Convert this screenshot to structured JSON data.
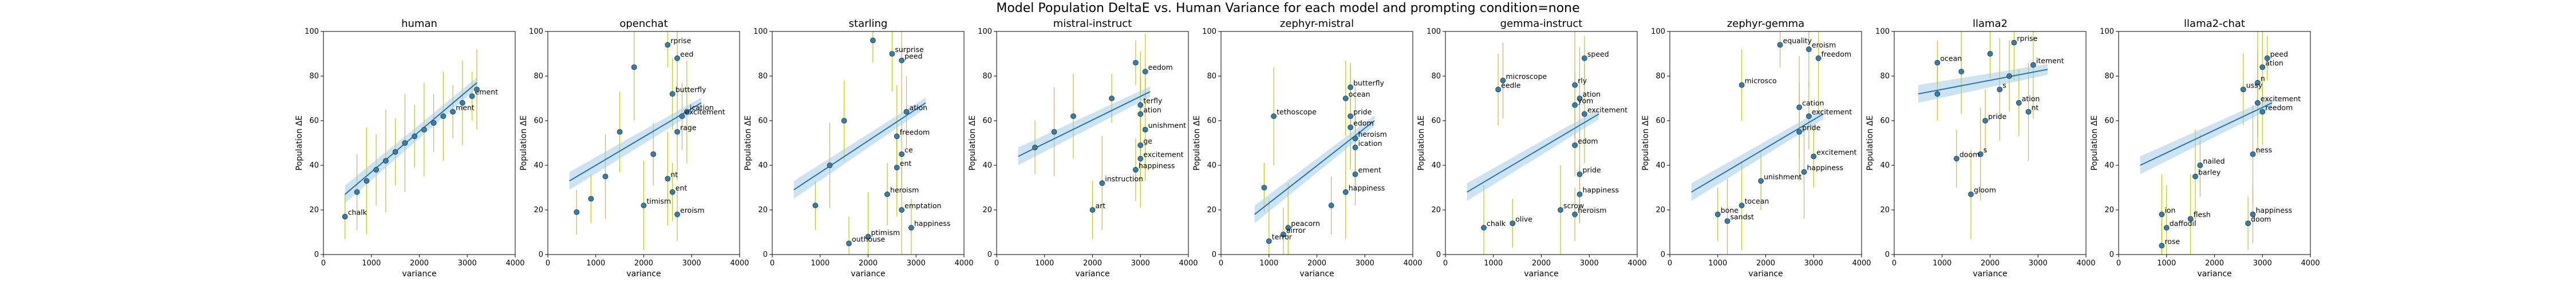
{
  "suptitle": "Model Population DeltaE vs. Human Variance for each model and prompting condition=none",
  "colors": {
    "point": "#3a7ca5",
    "errorbar": "#b5b800",
    "fit": "#1f77b4",
    "band": "#9ec7e6"
  },
  "chart_data": [
    {
      "type": "scatter",
      "title": "human",
      "xlabel": "variance",
      "ylabel": "Population ΔE",
      "xlim": [
        0,
        4000
      ],
      "ylim": [
        0,
        100
      ],
      "xticks": [
        0,
        1000,
        2000,
        3000,
        4000
      ],
      "yticks": [
        0,
        20,
        40,
        60,
        80,
        100
      ],
      "fit": [
        [
          450,
          27
        ],
        [
          3200,
          77
        ]
      ],
      "points": [
        {
          "x": 450,
          "y": 17,
          "label": "chalk"
        },
        {
          "x": 700,
          "y": 28,
          "label": ""
        },
        {
          "x": 900,
          "y": 33,
          "label": ""
        },
        {
          "x": 1100,
          "y": 38,
          "label": ""
        },
        {
          "x": 1300,
          "y": 42,
          "label": ""
        },
        {
          "x": 1500,
          "y": 46,
          "label": ""
        },
        {
          "x": 1700,
          "y": 50,
          "label": ""
        },
        {
          "x": 1900,
          "y": 53,
          "label": ""
        },
        {
          "x": 2100,
          "y": 56,
          "label": ""
        },
        {
          "x": 2300,
          "y": 59,
          "label": ""
        },
        {
          "x": 2500,
          "y": 62,
          "label": ""
        },
        {
          "x": 2700,
          "y": 64,
          "label": "ment"
        },
        {
          "x": 2900,
          "y": 68,
          "label": ""
        },
        {
          "x": 3100,
          "y": 71,
          "label": "ement"
        },
        {
          "x": 3200,
          "y": 74,
          "label": ""
        }
      ]
    },
    {
      "type": "scatter",
      "title": "openchat",
      "xlabel": "variance",
      "ylabel": "Population ΔE",
      "xlim": [
        0,
        4000
      ],
      "ylim": [
        0,
        100
      ],
      "xticks": [
        0,
        1000,
        2000,
        3000,
        4000
      ],
      "yticks": [
        0,
        20,
        40,
        60,
        80,
        100
      ],
      "fit": [
        [
          450,
          33
        ],
        [
          3200,
          68
        ]
      ],
      "points": [
        {
          "x": 2500,
          "y": 94,
          "label": "rprise"
        },
        {
          "x": 2700,
          "y": 88,
          "label": "eed"
        },
        {
          "x": 1800,
          "y": 84,
          "label": ""
        },
        {
          "x": 2600,
          "y": 72,
          "label": "butterfly"
        },
        {
          "x": 2900,
          "y": 64,
          "label": "ication"
        },
        {
          "x": 2800,
          "y": 62,
          "label": "excitement"
        },
        {
          "x": 2700,
          "y": 55,
          "label": "rage"
        },
        {
          "x": 2200,
          "y": 45,
          "label": ""
        },
        {
          "x": 2500,
          "y": 34,
          "label": "nt"
        },
        {
          "x": 2600,
          "y": 28,
          "label": "ent"
        },
        {
          "x": 2000,
          "y": 22,
          "label": "timism"
        },
        {
          "x": 2700,
          "y": 18,
          "label": "eroism"
        },
        {
          "x": 1200,
          "y": 35,
          "label": ""
        },
        {
          "x": 900,
          "y": 25,
          "label": ""
        },
        {
          "x": 1500,
          "y": 55,
          "label": ""
        },
        {
          "x": 600,
          "y": 19,
          "label": ""
        }
      ]
    },
    {
      "type": "scatter",
      "title": "starling",
      "xlabel": "variance",
      "ylabel": "Population ΔE",
      "xlim": [
        0,
        4000
      ],
      "ylim": [
        0,
        100
      ],
      "xticks": [
        0,
        1000,
        2000,
        3000,
        4000
      ],
      "yticks": [
        0,
        20,
        40,
        60,
        80,
        100
      ],
      "fit": [
        [
          450,
          29
        ],
        [
          3200,
          68
        ]
      ],
      "points": [
        {
          "x": 2100,
          "y": 96,
          "label": ""
        },
        {
          "x": 2500,
          "y": 90,
          "label": "surprise"
        },
        {
          "x": 2700,
          "y": 87,
          "label": "peed"
        },
        {
          "x": 2800,
          "y": 64,
          "label": "ation"
        },
        {
          "x": 2600,
          "y": 53,
          "label": "freedom"
        },
        {
          "x": 2700,
          "y": 45,
          "label": "ce"
        },
        {
          "x": 2600,
          "y": 39,
          "label": "ent"
        },
        {
          "x": 2400,
          "y": 27,
          "label": "heroism"
        },
        {
          "x": 2700,
          "y": 20,
          "label": "emptation"
        },
        {
          "x": 2900,
          "y": 12,
          "label": "happiness"
        },
        {
          "x": 2000,
          "y": 8,
          "label": "ptimism"
        },
        {
          "x": 1600,
          "y": 5,
          "label": "outhouse"
        },
        {
          "x": 1200,
          "y": 40,
          "label": ""
        },
        {
          "x": 900,
          "y": 22,
          "label": ""
        },
        {
          "x": 1500,
          "y": 60,
          "label": ""
        }
      ]
    },
    {
      "type": "scatter",
      "title": "mistral-instruct",
      "xlabel": "variance",
      "ylabel": "Population ΔE",
      "xlim": [
        0,
        4000
      ],
      "ylim": [
        0,
        100
      ],
      "xticks": [
        0,
        1000,
        2000,
        3000,
        4000
      ],
      "yticks": [
        0,
        20,
        40,
        60,
        80,
        100
      ],
      "fit": [
        [
          450,
          44
        ],
        [
          3200,
          73
        ]
      ],
      "points": [
        {
          "x": 2900,
          "y": 86,
          "label": ""
        },
        {
          "x": 3100,
          "y": 82,
          "label": "eedom"
        },
        {
          "x": 3000,
          "y": 67,
          "label": "terfly"
        },
        {
          "x": 3000,
          "y": 63,
          "label": "ation"
        },
        {
          "x": 3100,
          "y": 56,
          "label": "unishment"
        },
        {
          "x": 3000,
          "y": 49,
          "label": "ge"
        },
        {
          "x": 3000,
          "y": 43,
          "label": "excitement"
        },
        {
          "x": 2900,
          "y": 38,
          "label": "happiness"
        },
        {
          "x": 2200,
          "y": 32,
          "label": "instruction"
        },
        {
          "x": 2000,
          "y": 20,
          "label": "art"
        },
        {
          "x": 1200,
          "y": 55,
          "label": ""
        },
        {
          "x": 800,
          "y": 48,
          "label": ""
        },
        {
          "x": 1600,
          "y": 62,
          "label": ""
        },
        {
          "x": 2400,
          "y": 70,
          "label": ""
        }
      ]
    },
    {
      "type": "scatter",
      "title": "zephyr-mistral",
      "xlabel": "variance",
      "ylabel": "Population ΔE",
      "xlim": [
        0,
        4000
      ],
      "ylim": [
        0,
        100
      ],
      "xticks": [
        0,
        1000,
        2000,
        3000,
        4000
      ],
      "yticks": [
        0,
        20,
        40,
        60,
        80,
        100
      ],
      "fit": [
        [
          700,
          18
        ],
        [
          3200,
          60
        ]
      ],
      "points": [
        {
          "x": 2700,
          "y": 75,
          "label": "butterfly"
        },
        {
          "x": 2600,
          "y": 70,
          "label": "ocean"
        },
        {
          "x": 2700,
          "y": 62,
          "label": "pride"
        },
        {
          "x": 2700,
          "y": 57,
          "label": "edom"
        },
        {
          "x": 2800,
          "y": 52,
          "label": "heroism"
        },
        {
          "x": 2800,
          "y": 48,
          "label": "ication"
        },
        {
          "x": 1100,
          "y": 62,
          "label": "tethoscope"
        },
        {
          "x": 2800,
          "y": 36,
          "label": "ement"
        },
        {
          "x": 2600,
          "y": 28,
          "label": "happiness"
        },
        {
          "x": 2300,
          "y": 22,
          "label": ""
        },
        {
          "x": 1400,
          "y": 12,
          "label": "peacorn"
        },
        {
          "x": 1300,
          "y": 9,
          "label": "airror"
        },
        {
          "x": 1000,
          "y": 6,
          "label": "terror"
        },
        {
          "x": 900,
          "y": 30,
          "label": ""
        }
      ]
    },
    {
      "type": "scatter",
      "title": "gemma-instruct",
      "xlabel": "variance",
      "ylabel": "Population ΔE",
      "xlim": [
        0,
        4000
      ],
      "ylim": [
        0,
        100
      ],
      "xticks": [
        0,
        1000,
        2000,
        3000,
        4000
      ],
      "yticks": [
        0,
        20,
        40,
        60,
        80,
        100
      ],
      "fit": [
        [
          450,
          28
        ],
        [
          3200,
          63
        ]
      ],
      "points": [
        {
          "x": 2900,
          "y": 88,
          "label": "speed"
        },
        {
          "x": 1200,
          "y": 78,
          "label": "microscope"
        },
        {
          "x": 2700,
          "y": 76,
          "label": "rly"
        },
        {
          "x": 1100,
          "y": 74,
          "label": "eedle"
        },
        {
          "x": 2800,
          "y": 70,
          "label": "ation"
        },
        {
          "x": 2700,
          "y": 67,
          "label": "yom"
        },
        {
          "x": 2900,
          "y": 63,
          "label": "excitement"
        },
        {
          "x": 2700,
          "y": 49,
          "label": "edom"
        },
        {
          "x": 2800,
          "y": 36,
          "label": "pride"
        },
        {
          "x": 2800,
          "y": 27,
          "label": "happiness"
        },
        {
          "x": 2400,
          "y": 20,
          "label": "scrow"
        },
        {
          "x": 2700,
          "y": 18,
          "label": "heroism"
        },
        {
          "x": 800,
          "y": 12,
          "label": "chalk"
        },
        {
          "x": 1400,
          "y": 14,
          "label": "olive"
        }
      ]
    },
    {
      "type": "scatter",
      "title": "zephyr-gemma",
      "xlabel": "variance",
      "ylabel": "Population ΔE",
      "xlim": [
        0,
        4000
      ],
      "ylim": [
        0,
        100
      ],
      "xticks": [
        0,
        1000,
        2000,
        3000,
        4000
      ],
      "yticks": [
        0,
        20,
        40,
        60,
        80,
        100
      ],
      "fit": [
        [
          450,
          28
        ],
        [
          3200,
          63
        ]
      ],
      "points": [
        {
          "x": 2300,
          "y": 94,
          "label": "equality"
        },
        {
          "x": 2900,
          "y": 92,
          "label": "eroism"
        },
        {
          "x": 3100,
          "y": 88,
          "label": "freedom"
        },
        {
          "x": 1500,
          "y": 76,
          "label": "microsco"
        },
        {
          "x": 2700,
          "y": 66,
          "label": "cation"
        },
        {
          "x": 2900,
          "y": 62,
          "label": "excitement"
        },
        {
          "x": 2700,
          "y": 55,
          "label": "pride"
        },
        {
          "x": 3000,
          "y": 44,
          "label": "excitement"
        },
        {
          "x": 2800,
          "y": 37,
          "label": "happiness"
        },
        {
          "x": 1900,
          "y": 33,
          "label": "unishment"
        },
        {
          "x": 1500,
          "y": 22,
          "label": "tocean"
        },
        {
          "x": 1000,
          "y": 18,
          "label": "bone"
        },
        {
          "x": 1200,
          "y": 15,
          "label": "sandst"
        }
      ]
    },
    {
      "type": "scatter",
      "title": "llama2",
      "xlabel": "variance",
      "ylabel": "Population ΔE",
      "xlim": [
        0,
        4000
      ],
      "ylim": [
        0,
        100
      ],
      "xticks": [
        0,
        1000,
        2000,
        3000,
        4000
      ],
      "yticks": [
        0,
        20,
        40,
        60,
        80,
        100
      ],
      "fit": [
        [
          500,
          72
        ],
        [
          3200,
          83
        ]
      ],
      "points": [
        {
          "x": 900,
          "y": 86,
          "label": "ocean"
        },
        {
          "x": 2500,
          "y": 95,
          "label": "rprise"
        },
        {
          "x": 2900,
          "y": 85,
          "label": "itement"
        },
        {
          "x": 2400,
          "y": 80,
          "label": ""
        },
        {
          "x": 2200,
          "y": 74,
          "label": "s"
        },
        {
          "x": 2600,
          "y": 68,
          "label": "ation"
        },
        {
          "x": 2800,
          "y": 64,
          "label": "nt"
        },
        {
          "x": 1900,
          "y": 60,
          "label": "pride"
        },
        {
          "x": 1800,
          "y": 45,
          "label": "s"
        },
        {
          "x": 1300,
          "y": 43,
          "label": "doom"
        },
        {
          "x": 1600,
          "y": 27,
          "label": "gloom"
        },
        {
          "x": 900,
          "y": 72,
          "label": ""
        },
        {
          "x": 1400,
          "y": 82,
          "label": ""
        },
        {
          "x": 2000,
          "y": 90,
          "label": ""
        }
      ]
    },
    {
      "type": "scatter",
      "title": "llama2-chat",
      "xlabel": "variance",
      "ylabel": "Population ΔE",
      "xlim": [
        0,
        4000
      ],
      "ylim": [
        0,
        100
      ],
      "xticks": [
        0,
        1000,
        2000,
        3000,
        4000
      ],
      "yticks": [
        0,
        20,
        40,
        60,
        80,
        100
      ],
      "fit": [
        [
          450,
          40
        ],
        [
          3200,
          68
        ]
      ],
      "points": [
        {
          "x": 3100,
          "y": 88,
          "label": "peed"
        },
        {
          "x": 3000,
          "y": 84,
          "label": "ation"
        },
        {
          "x": 2900,
          "y": 77,
          "label": "n"
        },
        {
          "x": 2600,
          "y": 74,
          "label": "ussy"
        },
        {
          "x": 2900,
          "y": 68,
          "label": "excitement"
        },
        {
          "x": 3000,
          "y": 64,
          "label": "reedom"
        },
        {
          "x": 2800,
          "y": 45,
          "label": "ness"
        },
        {
          "x": 1700,
          "y": 40,
          "label": "nailed"
        },
        {
          "x": 1600,
          "y": 35,
          "label": "barley"
        },
        {
          "x": 2800,
          "y": 18,
          "label": "happiness"
        },
        {
          "x": 1500,
          "y": 16,
          "label": "flesh"
        },
        {
          "x": 2700,
          "y": 14,
          "label": "doom"
        },
        {
          "x": 1000,
          "y": 12,
          "label": "daffodil"
        },
        {
          "x": 900,
          "y": 4,
          "label": "rose"
        },
        {
          "x": 900,
          "y": 18,
          "label": "ion"
        }
      ]
    }
  ]
}
